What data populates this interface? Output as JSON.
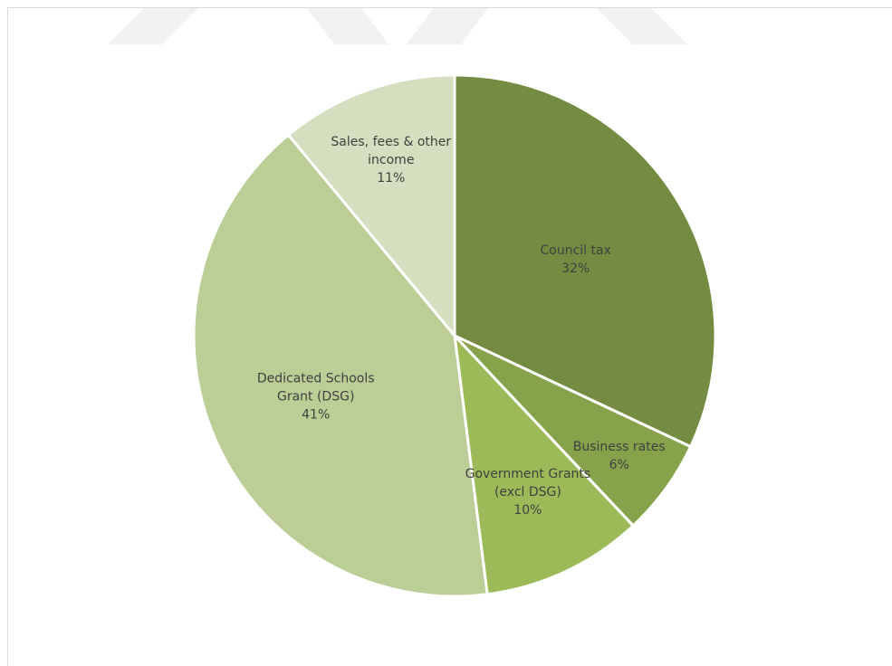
{
  "chart_data": {
    "type": "pie",
    "title": "",
    "categories": [
      "Council tax",
      "Business rates",
      "Government Grants (excl DSG)",
      "Dedicated Schools Grant (DSG)",
      "Sales, fees & other income"
    ],
    "values": [
      32,
      6,
      10,
      41,
      11
    ],
    "label_lines": [
      [
        "Council tax",
        "32%"
      ],
      [
        "Business rates",
        "6%"
      ],
      [
        "Government Grants",
        "(excl DSG)",
        "10%"
      ],
      [
        "Dedicated Schools",
        "Grant (DSG)",
        "41%"
      ],
      [
        "Sales, fees & other",
        "income",
        "11%"
      ]
    ],
    "colors": [
      "#748c41",
      "#86a34b",
      "#9cbb58",
      "#bbce96",
      "#d3dfbf"
    ],
    "start_angle": "12 o'clock",
    "direction": "clockwise",
    "legend": "none",
    "data_labels": "inside"
  }
}
